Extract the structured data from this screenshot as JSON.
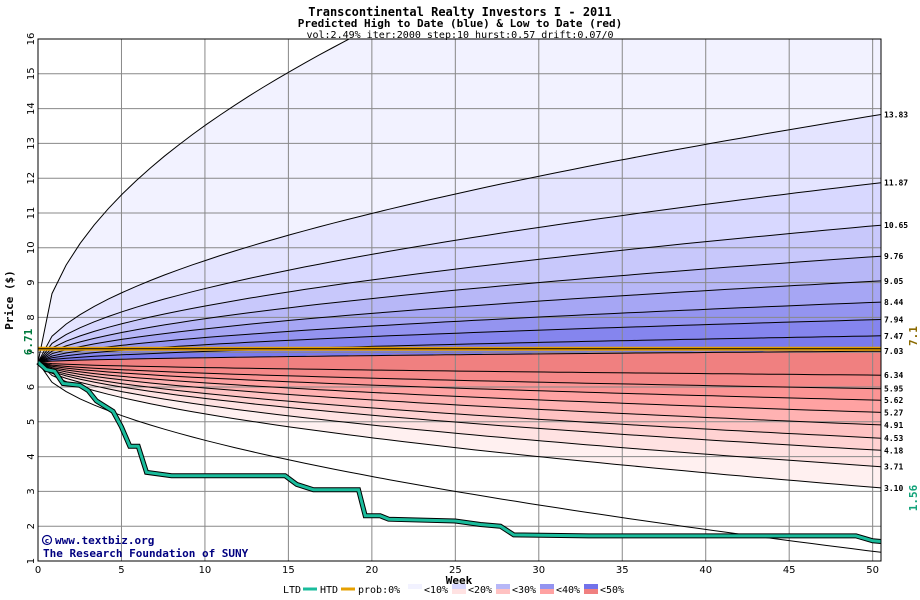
{
  "chart_data": {
    "type": "area",
    "title": "Transcontinental Realty Investors I - 2011",
    "subtitle": "Predicted High to Date (blue) &  Low to Date (red)",
    "params": "vol:2.49% iter:2000 step:10 hurst:0.57 drift:0.07/0",
    "xlabel": "Week",
    "ylabel": "Price ($)",
    "xlim": [
      0,
      50.5
    ],
    "ylim": [
      1,
      16
    ],
    "xticks": [
      0,
      5,
      10,
      15,
      20,
      25,
      30,
      35,
      40,
      45,
      50
    ],
    "yticks": [
      1,
      2,
      3,
      4,
      5,
      6,
      7,
      8,
      9,
      10,
      11,
      12,
      13,
      14,
      15,
      16
    ],
    "grid": true,
    "start_price": 6.71,
    "start_price_label": "6.71",
    "reference_price": 7.1,
    "reference_price_label": "7.1",
    "last_ltd": 1.56,
    "last_ltd_label": "1.56",
    "high_quantiles": [
      {
        "end": 13.83,
        "label": "13.83",
        "top": true
      },
      {
        "end": 11.87,
        "label": "11.87"
      },
      {
        "end": 10.65,
        "label": "10.65"
      },
      {
        "end": 9.76,
        "label": "9.76"
      },
      {
        "end": 9.05,
        "label": "9.05"
      },
      {
        "end": 8.44,
        "label": "8.44"
      },
      {
        "end": 7.94,
        "label": "7.94"
      },
      {
        "end": 7.47,
        "label": "7.47"
      },
      {
        "end": 7.03,
        "label": "7.03"
      }
    ],
    "high_envelope_note_end": 22.0,
    "low_quantiles": [
      {
        "end": 6.34,
        "label": "6.34"
      },
      {
        "end": 5.95,
        "label": "5.95"
      },
      {
        "end": 5.62,
        "label": "5.62"
      },
      {
        "end": 5.27,
        "label": "5.27"
      },
      {
        "end": 4.91,
        "label": "4.91"
      },
      {
        "end": 4.53,
        "label": "4.53"
      },
      {
        "end": 4.18,
        "label": "4.18"
      },
      {
        "end": 3.71,
        "label": "3.71"
      },
      {
        "end": 3.1,
        "label": "3.10"
      }
    ],
    "low_envelope_end": 1.25,
    "ltd_series": {
      "name": "LTD",
      "x": [
        0,
        0.5,
        1.0,
        1.5,
        2.5,
        3.0,
        3.5,
        4.5,
        5.0,
        5.5,
        6.0,
        6.5,
        8,
        10,
        12,
        14.8,
        15.5,
        16.5,
        19.2,
        19.6,
        20.5,
        21.0,
        25.0,
        26.5,
        27.7,
        28.5,
        33,
        40,
        45,
        49.0,
        50.0,
        50.5
      ],
      "y": [
        6.71,
        6.5,
        6.45,
        6.1,
        6.05,
        5.9,
        5.6,
        5.3,
        4.85,
        4.3,
        4.3,
        3.55,
        3.45,
        3.45,
        3.45,
        3.45,
        3.2,
        3.05,
        3.05,
        2.3,
        2.3,
        2.2,
        2.15,
        2.05,
        2.0,
        1.75,
        1.72,
        1.72,
        1.72,
        1.72,
        1.58,
        1.56
      ]
    },
    "colors": {
      "high_fill": "#e8e8ff",
      "low_fill": "#ffe8e8",
      "ltd_line": "#1abc9c",
      "htd_line": "#e6a000",
      "start_label": "#007a3d",
      "ref_label": "#8b6b00",
      "last_label": "#13a37a"
    },
    "legend": {
      "ltd": "LTD",
      "htd": "HTD",
      "prob": "prob:0%",
      "bands": [
        "<10%",
        "<20%",
        "<30%",
        "<40%",
        "<50%"
      ]
    }
  },
  "credits": {
    "url": "www.textbiz.org",
    "copyright_symbol": "©",
    "org": "The Research Foundation of SUNY"
  }
}
